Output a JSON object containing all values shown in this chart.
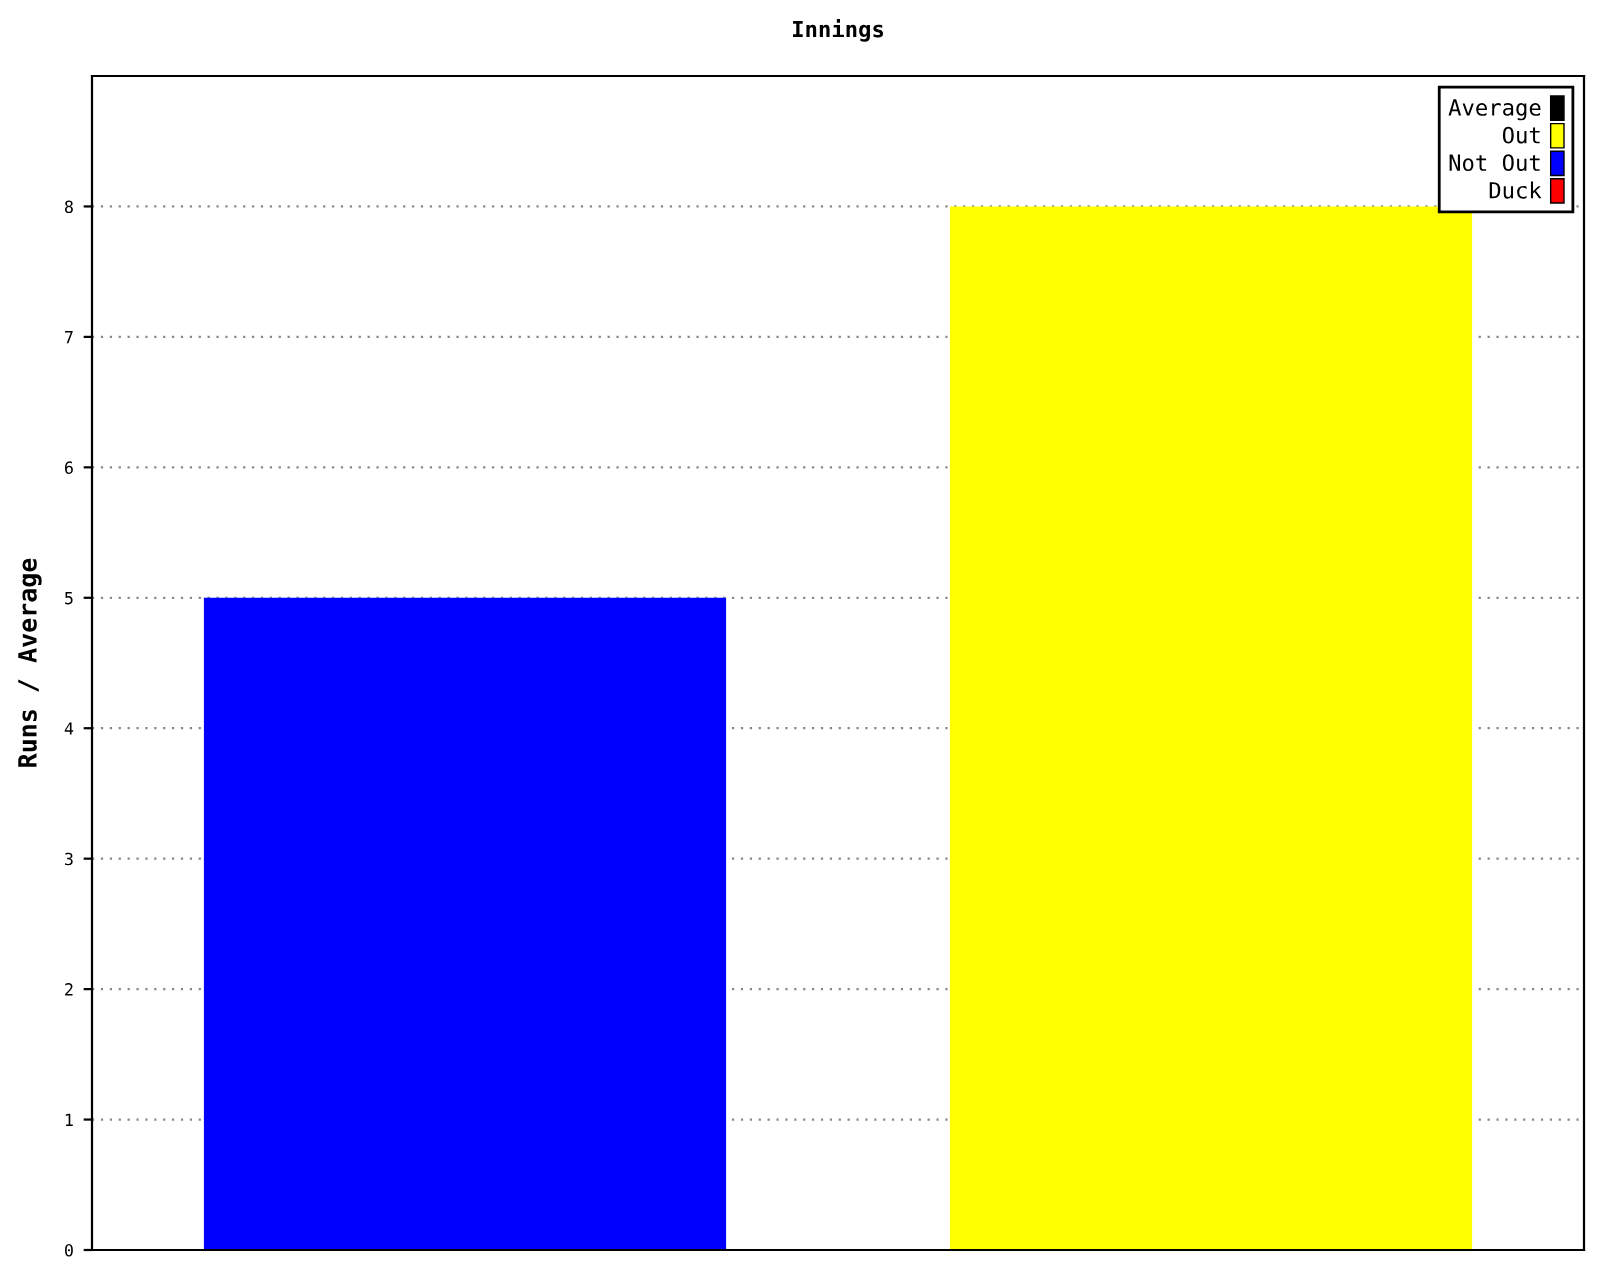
{
  "chart_data": {
    "type": "bar",
    "title": "Innings",
    "ylabel": "Runs / Average",
    "categories": [
      null,
      null
    ],
    "series": [
      {
        "name": "Average",
        "color": "#000000",
        "values": [
          null,
          null
        ]
      },
      {
        "name": "Out",
        "color": "#ffff00",
        "values": [
          null,
          8
        ]
      },
      {
        "name": "Not Out",
        "color": "#0000ff",
        "values": [
          5,
          null
        ]
      },
      {
        "name": "Duck",
        "color": "#ff0000",
        "values": [
          null,
          null
        ]
      }
    ],
    "ylim": [
      0,
      9
    ],
    "yticks": [
      0,
      1,
      2,
      3,
      4,
      5,
      6,
      7,
      8
    ],
    "grid": "y",
    "legend": "top right"
  }
}
